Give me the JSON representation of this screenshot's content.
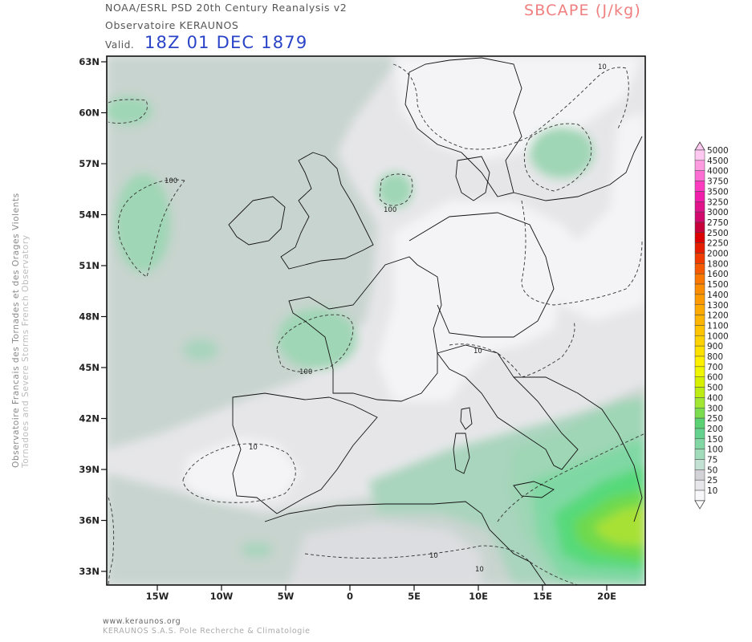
{
  "header": {
    "source": "NOAA/ESRL PSD 20th Century Reanalysis v2",
    "observatory": "Observatoire KERAUNOS",
    "valid_label": "Valid.",
    "valid_date": "18Z 01 DEC 1879",
    "parameter": "SBCAPE (J/kg)"
  },
  "sidebar": {
    "line1": "Observatoire Francais des Tornades et des Orages Violents",
    "line2": "Tornadoes and Severe Storms French Observatory"
  },
  "footer": {
    "url": "www.keraunos.org",
    "company": "KERAUNOS S.A.S. Pole Recherche & Climatologie"
  },
  "map": {
    "lat_labels": [
      "63N",
      "60N",
      "57N",
      "54N",
      "51N",
      "48N",
      "45N",
      "42N",
      "39N",
      "36N",
      "33N"
    ],
    "lon_labels": [
      "15W",
      "10W",
      "5W",
      "0",
      "5E",
      "10E",
      "15E",
      "20E"
    ],
    "contour_labels": [
      "10",
      "100",
      "100",
      "100",
      "10",
      "10",
      "10",
      "10"
    ],
    "colors": {
      "background": "#e6e6e8",
      "level_10": "#f4f4f6",
      "level_25": "#dcdde0",
      "level_50": "#c8d4cf",
      "level_75": "#a9d4bd",
      "level_100": "#9fd6b5",
      "level_150": "#7fd8a3",
      "level_200": "#56d97a",
      "level_250": "#6ed94e",
      "level_300": "#a8e135"
    }
  },
  "legend": {
    "levels": [
      "5000",
      "4500",
      "4000",
      "3750",
      "3500",
      "3250",
      "3000",
      "2750",
      "2500",
      "2250",
      "2000",
      "1800",
      "1600",
      "1500",
      "1400",
      "1300",
      "1200",
      "1100",
      "1000",
      "900",
      "800",
      "700",
      "600",
      "500",
      "400",
      "300",
      "250",
      "200",
      "150",
      "100",
      "75",
      "50",
      "25",
      "10"
    ],
    "colors": [
      "#ffc8f0",
      "#ff9be0",
      "#ff6ed2",
      "#ff3cc0",
      "#f01eaa",
      "#e1148c",
      "#d20a6e",
      "#c8003c",
      "#dc0000",
      "#e61e00",
      "#f03c00",
      "#f55a00",
      "#fa7800",
      "#fc8c00",
      "#ff9b00",
      "#ffaa00",
      "#ffb400",
      "#ffc300",
      "#ffd200",
      "#ffe100",
      "#fff000",
      "#f0f500",
      "#d7f000",
      "#bdeb14",
      "#a0e632",
      "#7cdc50",
      "#5ad273",
      "#64d28c",
      "#82d7a5",
      "#a0dcb9",
      "#c3e1d2",
      "#d2d2d7",
      "#e6e6eb",
      "#f8f8fa"
    ]
  }
}
